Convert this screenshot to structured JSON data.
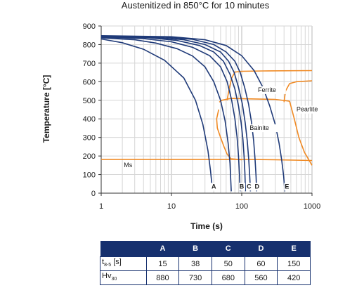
{
  "chart_data": {
    "type": "line",
    "title": "Austenitized in 850°C for 10 minutes",
    "xlabel": "Time (s)",
    "ylabel": "Temperature [°C]",
    "xscale": "log",
    "xlim": [
      1,
      1000
    ],
    "ylim": [
      0,
      900
    ],
    "xticks": [
      1,
      10,
      100,
      1000
    ],
    "xtick_labels": [
      "1",
      "10",
      "100",
      "1000"
    ],
    "yticks": [
      0,
      100,
      200,
      300,
      400,
      500,
      600,
      700,
      800,
      900
    ],
    "ytick_labels": [
      "0",
      "100",
      "200",
      "300",
      "400",
      "500",
      "600",
      "700",
      "800",
      "900"
    ],
    "grid": "log-vertical",
    "cooling_color": "#1f3a78",
    "transformation_color": "#f08a24",
    "cooling_curves": [
      {
        "label": "",
        "points": [
          [
            1,
            830
          ],
          [
            2,
            810
          ],
          [
            4,
            775
          ],
          [
            8,
            715
          ],
          [
            15,
            620
          ],
          [
            22,
            500
          ],
          [
            28,
            370
          ],
          [
            33,
            230
          ],
          [
            36,
            120
          ],
          [
            38,
            30
          ]
        ]
      },
      {
        "label": "A",
        "points": [
          [
            1,
            836
          ],
          [
            3,
            826
          ],
          [
            6,
            808
          ],
          [
            12,
            778
          ],
          [
            20,
            738
          ],
          [
            30,
            680
          ],
          [
            40,
            600
          ],
          [
            50,
            500
          ],
          [
            58,
            390
          ],
          [
            64,
            270
          ],
          [
            68,
            160
          ],
          [
            70,
            60
          ],
          [
            71,
            10
          ]
        ]
      },
      {
        "label": "",
        "points": [
          [
            1,
            840
          ],
          [
            4,
            832
          ],
          [
            10,
            815
          ],
          [
            20,
            785
          ],
          [
            35,
            740
          ],
          [
            50,
            680
          ],
          [
            62,
            600
          ],
          [
            72,
            500
          ],
          [
            80,
            400
          ],
          [
            86,
            300
          ],
          [
            90,
            200
          ],
          [
            93,
            100
          ],
          [
            95,
            10
          ]
        ]
      },
      {
        "label": "B",
        "points": [
          [
            1,
            842
          ],
          [
            5,
            836
          ],
          [
            12,
            822
          ],
          [
            25,
            795
          ],
          [
            40,
            760
          ],
          [
            55,
            710
          ],
          [
            68,
            640
          ],
          [
            80,
            560
          ],
          [
            90,
            470
          ],
          [
            98,
            380
          ],
          [
            104,
            290
          ],
          [
            108,
            200
          ],
          [
            111,
            110
          ],
          [
            113,
            10
          ]
        ]
      },
      {
        "label": "C",
        "points": [
          [
            1,
            844
          ],
          [
            6,
            838
          ],
          [
            15,
            826
          ],
          [
            30,
            800
          ],
          [
            50,
            760
          ],
          [
            65,
            710
          ],
          [
            78,
            650
          ],
          [
            90,
            570
          ],
          [
            102,
            480
          ],
          [
            112,
            380
          ],
          [
            120,
            280
          ],
          [
            126,
            180
          ],
          [
            130,
            90
          ],
          [
            133,
            10
          ]
        ]
      },
      {
        "label": "D",
        "points": [
          [
            1,
            846
          ],
          [
            8,
            840
          ],
          [
            20,
            828
          ],
          [
            40,
            800
          ],
          [
            60,
            760
          ],
          [
            80,
            710
          ],
          [
            95,
            650
          ],
          [
            110,
            570
          ],
          [
            125,
            480
          ],
          [
            138,
            380
          ],
          [
            148,
            280
          ],
          [
            155,
            180
          ],
          [
            160,
            90
          ],
          [
            163,
            10
          ]
        ]
      },
      {
        "label": "E",
        "points": [
          [
            1,
            848
          ],
          [
            10,
            842
          ],
          [
            30,
            826
          ],
          [
            60,
            795
          ],
          [
            100,
            740
          ],
          [
            150,
            660
          ],
          [
            200,
            570
          ],
          [
            250,
            470
          ],
          [
            300,
            370
          ],
          [
            340,
            270
          ],
          [
            370,
            180
          ],
          [
            395,
            90
          ],
          [
            410,
            10
          ]
        ]
      }
    ],
    "transformation_lines": [
      {
        "name": "ferrite-start",
        "points": [
          [
            62,
            500
          ],
          [
            66,
            560
          ],
          [
            72,
            620
          ],
          [
            80,
            652
          ],
          [
            100,
            656
          ],
          [
            200,
            658
          ],
          [
            1000,
            660
          ]
        ]
      },
      {
        "name": "pearlite-start",
        "points": [
          [
            400,
            490
          ],
          [
            420,
            550
          ],
          [
            480,
            590
          ],
          [
            600,
            600
          ],
          [
            1000,
            605
          ]
        ]
      },
      {
        "name": "bainite-start",
        "points": [
          [
            48,
            490
          ],
          [
            52,
            500
          ],
          [
            70,
            510
          ],
          [
            120,
            508
          ],
          [
            300,
            505
          ],
          [
            480,
            495
          ]
        ]
      },
      {
        "name": "bainite-finish",
        "points": [
          [
            47,
            450
          ],
          [
            44,
            400
          ],
          [
            45,
            350
          ],
          [
            50,
            300
          ],
          [
            56,
            250
          ],
          [
            62,
            210
          ],
          [
            70,
            185
          ],
          [
            100,
            180
          ]
        ]
      },
      {
        "name": "pearlite-finish",
        "points": [
          [
            480,
            495
          ],
          [
            560,
            400
          ],
          [
            650,
            300
          ],
          [
            780,
            220
          ],
          [
            1000,
            150
          ]
        ]
      },
      {
        "name": "ms-line",
        "points": [
          [
            1,
            182
          ],
          [
            100,
            182
          ],
          [
            300,
            180
          ],
          [
            1000,
            176
          ]
        ]
      }
    ],
    "annotations": [
      {
        "text": "Ferrite",
        "x": 170,
        "y": 545
      },
      {
        "text": "Pearlite",
        "x": 600,
        "y": 440
      },
      {
        "text": "Bainite",
        "x": 130,
        "y": 340
      },
      {
        "text": "Ms",
        "x": 2.1,
        "y": 140
      }
    ],
    "curve_labels": [
      {
        "text": "A",
        "x": 40,
        "y": 25
      },
      {
        "text": "B",
        "x": 100,
        "y": 25
      },
      {
        "text": "C",
        "x": 127,
        "y": 25
      },
      {
        "text": "D",
        "x": 165,
        "y": 25
      },
      {
        "text": "E",
        "x": 440,
        "y": 25
      }
    ],
    "table": {
      "columns": [
        "A",
        "B",
        "C",
        "D",
        "E"
      ],
      "rows": [
        {
          "label_main": "t",
          "label_sub": "8-5",
          "label_suffix": " [s]",
          "values": [
            "15",
            "38",
            "50",
            "60",
            "150"
          ]
        },
        {
          "label_main": "Hv",
          "label_sub": "30",
          "label_suffix": "",
          "values": [
            "880",
            "730",
            "680",
            "560",
            "420"
          ]
        }
      ]
    }
  }
}
